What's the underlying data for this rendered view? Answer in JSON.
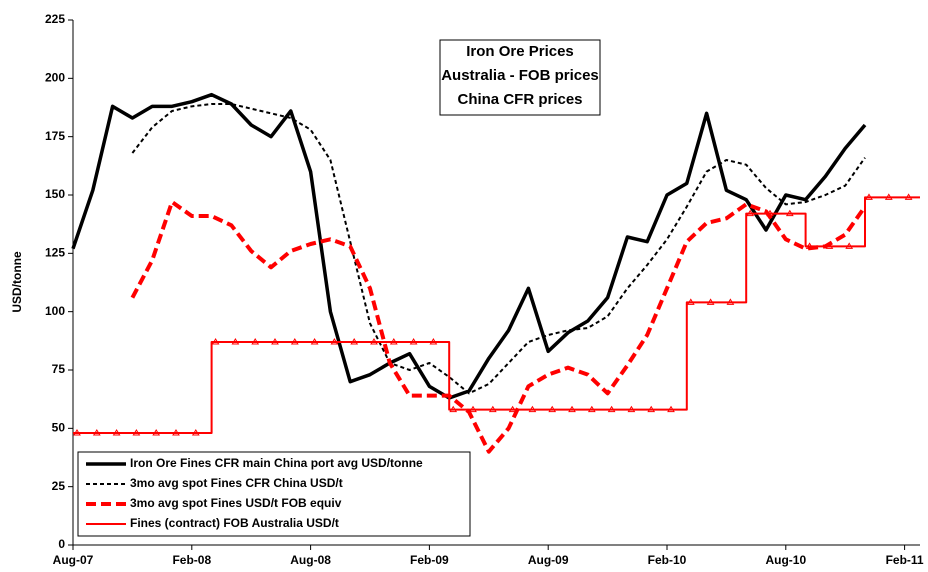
{
  "chart_data": {
    "type": "line",
    "title": [
      "Iron Ore Prices",
      "Australia - FOB prices",
      "China CFR prices"
    ],
    "y_label": "USD/tonne",
    "categories": [
      "Aug-07",
      null,
      null,
      null,
      null,
      null,
      "Feb-08",
      null,
      null,
      null,
      null,
      null,
      "Aug-08",
      null,
      null,
      null,
      null,
      null,
      "Feb-09",
      null,
      null,
      null,
      null,
      null,
      "Aug-09",
      null,
      null,
      null,
      null,
      null,
      "Feb-10",
      null,
      null,
      null,
      null,
      null,
      "Aug-10",
      null,
      null,
      null,
      null,
      null,
      "Feb-11"
    ],
    "ylim": [
      0,
      225
    ],
    "yticks": [
      0,
      25,
      50,
      75,
      100,
      125,
      150,
      175,
      200,
      225
    ],
    "legend": "lower left",
    "series": [
      {
        "name": "Iron Ore Fines CFR main China port avg USD/tonne",
        "color": "#000000",
        "line_style": "solid",
        "values": [
          127,
          152,
          188,
          183,
          188,
          188,
          190,
          193,
          189,
          180,
          175,
          186,
          160,
          100,
          70,
          73,
          78,
          82,
          68,
          63,
          66,
          80,
          92,
          110,
          83,
          91,
          96,
          106,
          132,
          130,
          150,
          155,
          185,
          152,
          148,
          135,
          150,
          148,
          158,
          170,
          180,
          null,
          null
        ]
      },
      {
        "name": "3mo avg spot Fines CFR China USD/t",
        "color": "#000000",
        "line_style": "dotted",
        "values": [
          null,
          null,
          null,
          168,
          179,
          186,
          188,
          189,
          189,
          187,
          185,
          183,
          178,
          165,
          130,
          95,
          78,
          75,
          78,
          72,
          65,
          69,
          78,
          87,
          90,
          92,
          93,
          98,
          110,
          120,
          131,
          145,
          160,
          165,
          163,
          153,
          146,
          147,
          150,
          154,
          166,
          null,
          null
        ]
      },
      {
        "name": "3mo avg spot Fines USD/t FOB equiv",
        "color": "#ff0000",
        "line_style": "dashed",
        "values": [
          null,
          null,
          null,
          106,
          122,
          147,
          141,
          141,
          137,
          126,
          119,
          126,
          129,
          131,
          128,
          110,
          78,
          64,
          64,
          64,
          57,
          40,
          50,
          68,
          73,
          76,
          73,
          65,
          77,
          90,
          110,
          130,
          138,
          140,
          146,
          143,
          131,
          127,
          128,
          133,
          145,
          null,
          null
        ]
      },
      {
        "name": "Fines (contract) FOB Australia USD/t",
        "color": "#ff0000",
        "line_style": "solid",
        "step": true,
        "values": [
          48,
          48,
          48,
          48,
          48,
          48,
          48,
          87,
          87,
          87,
          87,
          87,
          87,
          87,
          87,
          87,
          87,
          87,
          87,
          58,
          58,
          58,
          58,
          58,
          58,
          58,
          58,
          58,
          58,
          58,
          58,
          104,
          104,
          104,
          142,
          142,
          142,
          128,
          128,
          128,
          149,
          149,
          149
        ]
      }
    ]
  }
}
